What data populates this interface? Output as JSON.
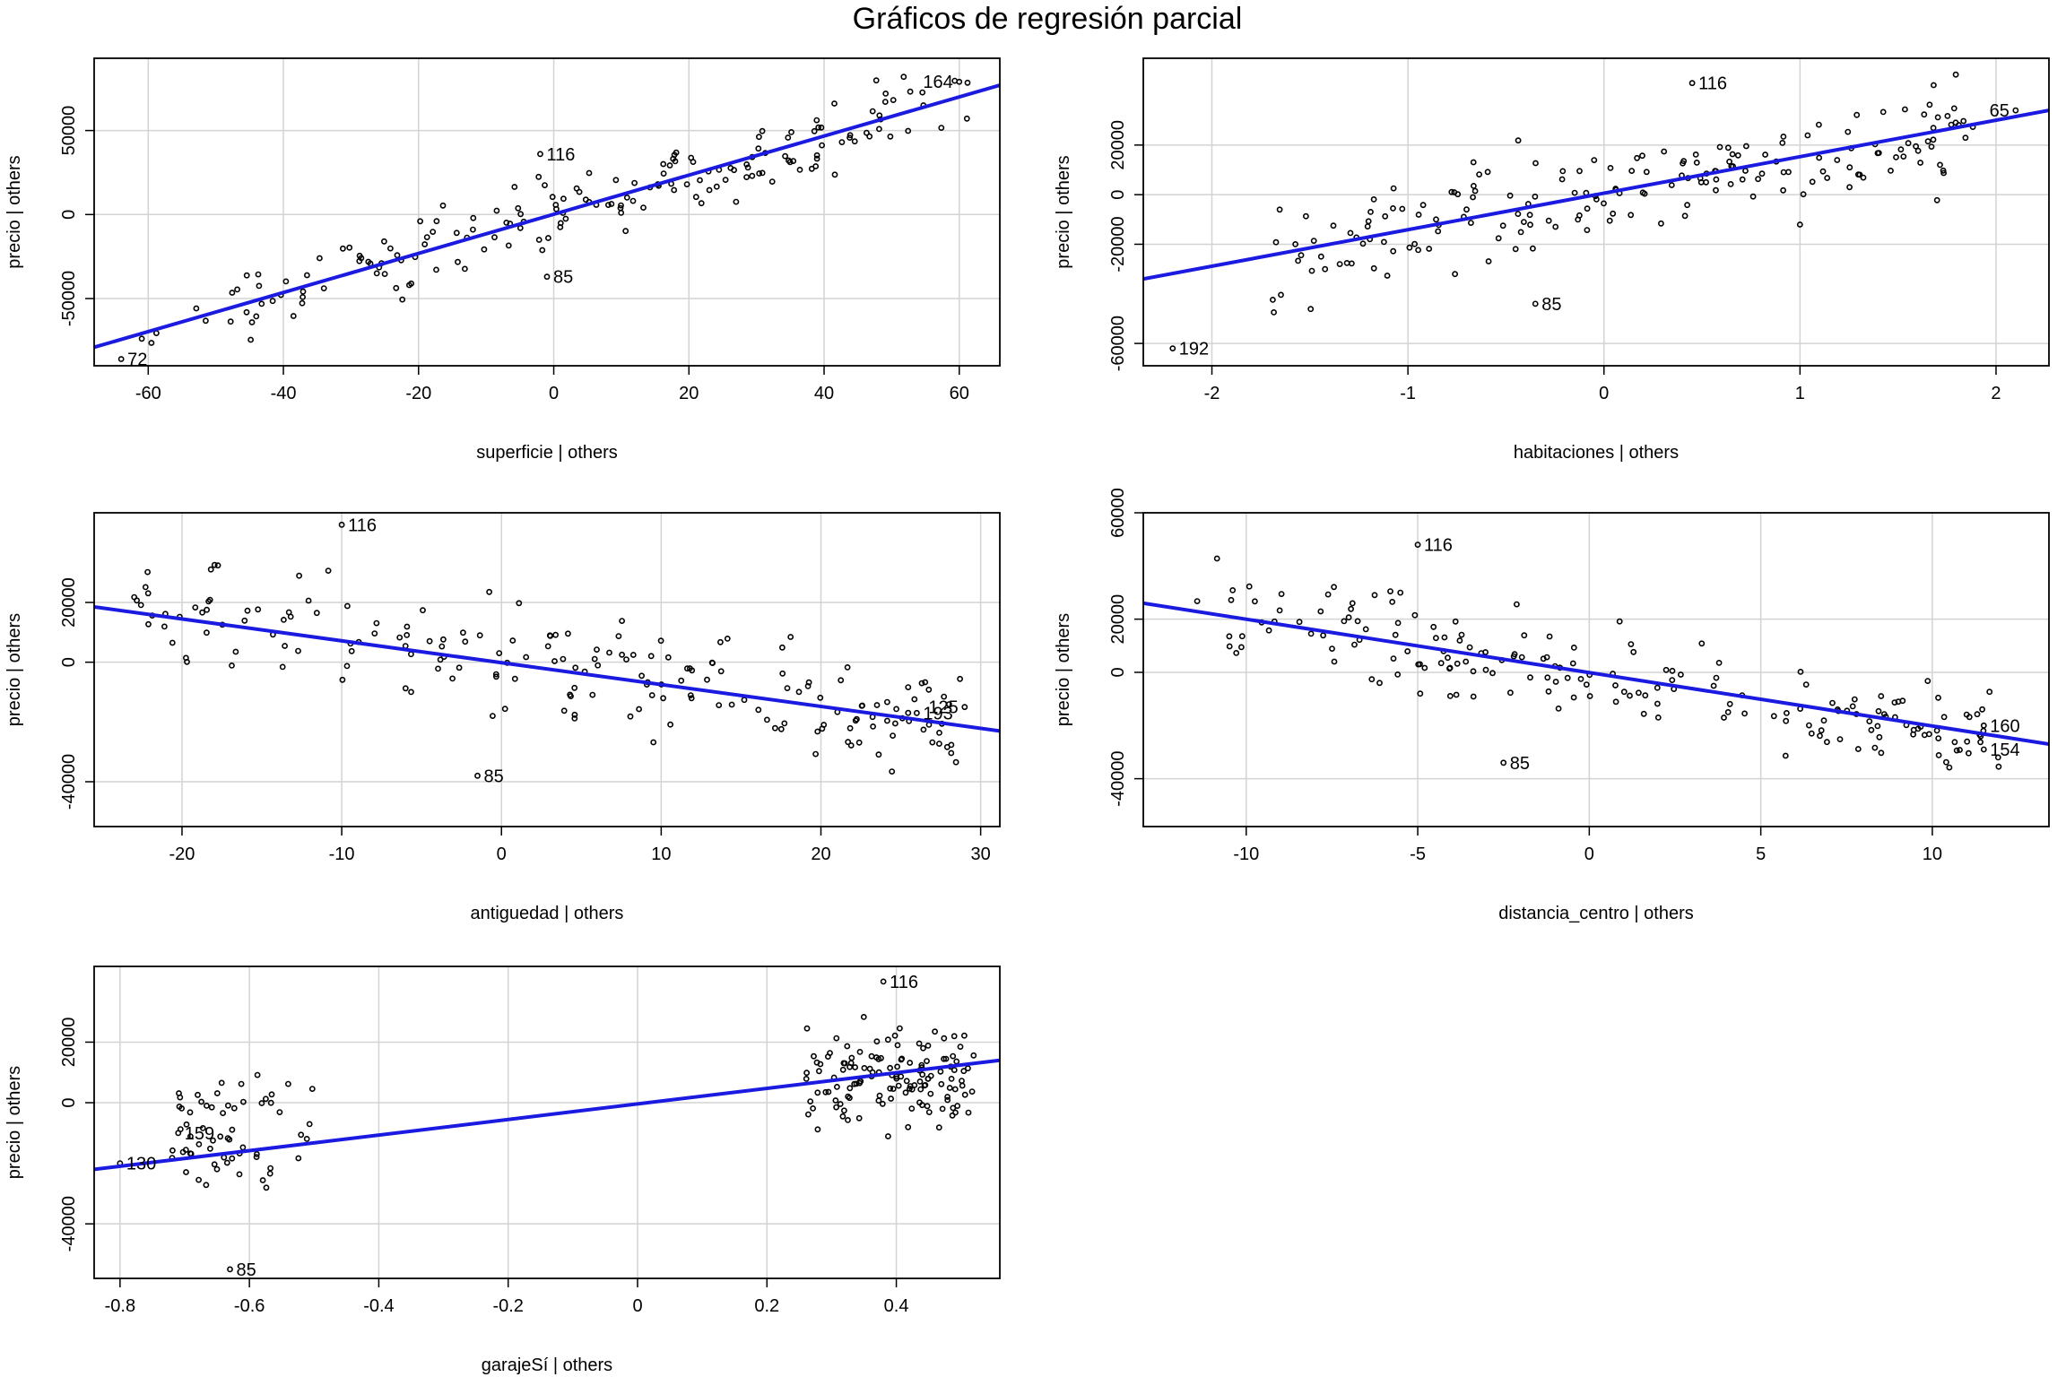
{
  "title": "Gráficos de regresión parcial",
  "colors": {
    "regression_line": "#1a1ae0",
    "grid": "#d3d3d3",
    "points": "#000000"
  },
  "chart_data": [
    {
      "type": "scatter",
      "xlabel": "superficie | others",
      "ylabel": "precio  | others",
      "xlim": [
        -68,
        66
      ],
      "ylim": [
        -90000,
        93000
      ],
      "xticks": [
        -60,
        -40,
        -20,
        0,
        20,
        40,
        60
      ],
      "yticks": [
        -50000,
        0,
        50000
      ],
      "grid": true,
      "fit_line": [
        [
          -68,
          -79000
        ],
        [
          66,
          77000
        ]
      ],
      "labeled_points": [
        {
          "label": "72",
          "x": -64,
          "y": -86000
        },
        {
          "label": "164",
          "x": 60,
          "y": 79000
        },
        {
          "label": "116",
          "x": -2,
          "y": 36000
        },
        {
          "label": "85",
          "x": -1,
          "y": -37000
        }
      ],
      "point_clusters": [
        {
          "n": 165,
          "x_min": -48,
          "x_max": 50,
          "slope": 1160,
          "intercept": 0,
          "spread": 15000
        },
        {
          "n": 10,
          "x_min": 50,
          "x_max": 62,
          "slope": 1160,
          "intercept": 4000,
          "spread": 12000
        },
        {
          "n": 5,
          "x_min": -62,
          "x_max": -48,
          "slope": 1160,
          "intercept": 0,
          "spread": 10000
        }
      ]
    },
    {
      "type": "scatter",
      "xlabel": "habitaciones | others",
      "ylabel": "precio  | others",
      "xlim": [
        -2.35,
        2.27
      ],
      "ylim": [
        -69000,
        55000
      ],
      "xticks": [
        -2,
        -1,
        0,
        1,
        2
      ],
      "yticks": [
        -60000,
        -20000,
        0,
        20000
      ],
      "grid": true,
      "fit_line": [
        [
          -2.35,
          -34000
        ],
        [
          2.27,
          34000
        ]
      ],
      "labeled_points": [
        {
          "label": "192",
          "x": -2.2,
          "y": -62000
        },
        {
          "label": "65",
          "x": 2.1,
          "y": 34000
        },
        {
          "label": "116",
          "x": 0.45,
          "y": 45000
        },
        {
          "label": "85",
          "x": -0.35,
          "y": -44000
        }
      ],
      "point_clusters": [
        {
          "n": 190,
          "x_min": -1.7,
          "x_max": 1.9,
          "slope": 14700,
          "intercept": 0,
          "spread": 15000
        }
      ]
    },
    {
      "type": "scatter",
      "xlabel": "antiguedad | others",
      "ylabel": "precio  | others",
      "xlim": [
        -25.5,
        31.2
      ],
      "ylim": [
        -55000,
        50000
      ],
      "xticks": [
        -20,
        -10,
        0,
        10,
        20,
        30
      ],
      "yticks": [
        -40000,
        0,
        20000
      ],
      "grid": true,
      "fit_line": [
        [
          -25.5,
          18500
        ],
        [
          31.2,
          -23000
        ]
      ],
      "labeled_points": [
        {
          "label": "116",
          "x": -10,
          "y": 46000
        },
        {
          "label": "125",
          "x": 29,
          "y": -15000
        },
        {
          "label": "193",
          "x": 26,
          "y": -17000
        },
        {
          "label": "85",
          "x": -1.5,
          "y": -38000
        }
      ],
      "point_clusters": [
        {
          "n": 190,
          "x_min": -23,
          "x_max": 29,
          "slope": -730,
          "intercept": 0,
          "spread": 13000
        }
      ]
    },
    {
      "type": "scatter",
      "xlabel": "distancia_centro | others",
      "ylabel": "precio  | others",
      "xlim": [
        -13,
        13.4
      ],
      "ylim": [
        -58000,
        60000
      ],
      "xticks": [
        -10,
        -5,
        0,
        5,
        10
      ],
      "yticks": [
        -40000,
        0,
        20000,
        60000
      ],
      "grid": true,
      "fit_line": [
        [
          -13,
          26000
        ],
        [
          13.4,
          -27000
        ]
      ],
      "labeled_points": [
        {
          "label": "116",
          "x": -5,
          "y": 48000
        },
        {
          "label": "160",
          "x": 11.5,
          "y": -20000
        },
        {
          "label": "154",
          "x": 11.5,
          "y": -29000
        },
        {
          "label": "85",
          "x": -2.5,
          "y": -34000
        }
      ],
      "point_clusters": [
        {
          "n": 190,
          "x_min": -11.5,
          "x_max": 12,
          "slope": -2000,
          "intercept": 0,
          "spread": 12000
        }
      ]
    },
    {
      "type": "scatter",
      "xlabel": "garajeSí | others",
      "ylabel": "precio  | others",
      "xlim": [
        -0.84,
        0.56
      ],
      "ylim": [
        -58000,
        45000
      ],
      "xticks": [
        -0.8,
        -0.6,
        -0.4,
        -0.2,
        0.0,
        0.2,
        0.4
      ],
      "yticks": [
        -40000,
        0,
        20000
      ],
      "grid": true,
      "fit_line": [
        [
          -0.84,
          -22000
        ],
        [
          0.56,
          14000
        ]
      ],
      "labeled_points": [
        {
          "label": "116",
          "x": 0.38,
          "y": 40000
        },
        {
          "label": "159",
          "x": -0.71,
          "y": -10000
        },
        {
          "label": "130",
          "x": -0.8,
          "y": -20000
        },
        {
          "label": "85",
          "x": -0.63,
          "y": -55000
        }
      ],
      "point_clusters": [
        {
          "n": 62,
          "x_min": -0.72,
          "x_max": -0.5,
          "slope": 0,
          "intercept": -10000,
          "spread": 13000
        },
        {
          "n": 135,
          "x_min": 0.26,
          "x_max": 0.52,
          "slope": 0,
          "intercept": 9000,
          "spread": 12000
        }
      ]
    }
  ]
}
